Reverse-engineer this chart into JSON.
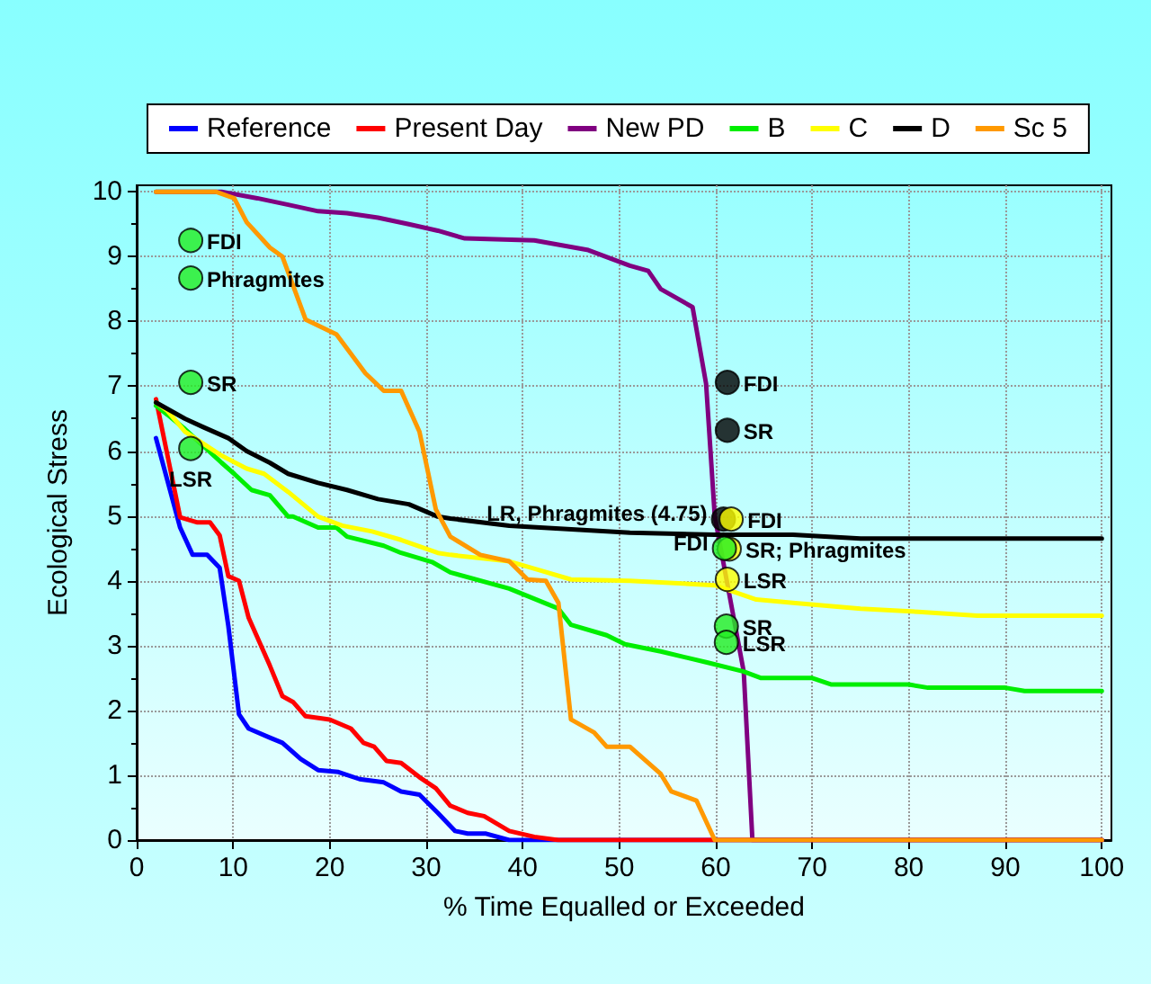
{
  "chart_data": {
    "type": "line",
    "xlabel": "% Time Equalled or Exceeded",
    "ylabel": "Ecological Stress",
    "xlim": [
      0,
      101
    ],
    "xticks": [
      0,
      10,
      20,
      30,
      40,
      50,
      60,
      70,
      80,
      90,
      100
    ],
    "ylim": [
      0,
      10.1
    ],
    "yticks": [
      0,
      1,
      2,
      3,
      4,
      5,
      6,
      7,
      8,
      9,
      10
    ],
    "grid": true,
    "legend": "top",
    "marker": "none",
    "line_style": "solid",
    "series": [
      {
        "name": "Reference",
        "color": "#0000ff",
        "x": [
          2,
          4.5,
          5.8,
          7.3,
          8.6,
          9.5,
          10.6,
          11.6,
          13.8,
          15.1,
          17,
          18.8,
          20.9,
          23.1,
          25.6,
          27.4,
          29.3,
          31.2,
          33,
          34.3,
          36.2,
          38.6,
          100
        ],
        "values": [
          6.2,
          4.82,
          4.4,
          4.4,
          4.2,
          3.3,
          1.94,
          1.72,
          1.58,
          1.5,
          1.25,
          1.08,
          1.05,
          0.94,
          0.89,
          0.75,
          0.7,
          0.42,
          0.14,
          0.1,
          0.1,
          0,
          0
        ]
      },
      {
        "name": "Present Day",
        "color": "#ff0000",
        "x": [
          2,
          4.5,
          6.3,
          7.6,
          8.6,
          9.5,
          10.6,
          11.6,
          13.8,
          15.1,
          16.2,
          17.5,
          20,
          22.2,
          23.5,
          24.6,
          25.9,
          27.4,
          29.3,
          31,
          32.5,
          34.3,
          36,
          38.6,
          41.2,
          43.7,
          100
        ],
        "values": [
          6.8,
          4.98,
          4.9,
          4.9,
          4.7,
          4.07,
          4,
          3.43,
          2.69,
          2.22,
          2.13,
          1.91,
          1.86,
          1.72,
          1.5,
          1.44,
          1.22,
          1.19,
          0.97,
          0.8,
          0.53,
          0.42,
          0.37,
          0.14,
          0.05,
          0,
          0
        ]
      },
      {
        "name": "New PD",
        "color": "#800080",
        "x": [
          2,
          8.8,
          12.5,
          15.7,
          18.8,
          21.8,
          25,
          28.2,
          31.2,
          34,
          41.2,
          46.8,
          51.1,
          53,
          54.3,
          57.6,
          59,
          59.9,
          62.9,
          63.8,
          100
        ],
        "values": [
          10,
          10,
          9.9,
          9.8,
          9.7,
          9.67,
          9.6,
          9.5,
          9.4,
          9.28,
          9.25,
          9.1,
          8.86,
          8.78,
          8.5,
          8.22,
          7.04,
          4.99,
          2.6,
          0,
          0
        ]
      },
      {
        "name": "B",
        "color": "#00ee00",
        "x": [
          2,
          3.2,
          5,
          8.8,
          10.1,
          11.9,
          13.8,
          15.7,
          16.2,
          18.8,
          20.7,
          21.8,
          25.6,
          27.4,
          30.6,
          32.5,
          38.6,
          43.7,
          45,
          48.7,
          50.6,
          54.3,
          59.1,
          62.9,
          64.7,
          70,
          72,
          80,
          82,
          90,
          92,
          100
        ],
        "values": [
          6.7,
          6.56,
          6.34,
          5.82,
          5.65,
          5.4,
          5.32,
          4.99,
          4.99,
          4.82,
          4.82,
          4.68,
          4.54,
          4.43,
          4.29,
          4.13,
          3.88,
          3.57,
          3.32,
          3.16,
          3.02,
          2.91,
          2.74,
          2.6,
          2.5,
          2.5,
          2.4,
          2.4,
          2.35,
          2.35,
          2.3,
          2.3
        ]
      },
      {
        "name": "C",
        "color": "#ffff00",
        "x": [
          2,
          3.2,
          5,
          8.8,
          11.4,
          13.2,
          15.7,
          18.8,
          21.3,
          24.4,
          27.4,
          31.2,
          32.5,
          38.6,
          41.8,
          45,
          51.1,
          59.9,
          64.2,
          68,
          75,
          81,
          87.1,
          100
        ],
        "values": [
          6.75,
          6.62,
          6.3,
          5.93,
          5.73,
          5.65,
          5.37,
          4.99,
          4.85,
          4.76,
          4.63,
          4.43,
          4.4,
          4.3,
          4.16,
          4.02,
          4,
          3.93,
          3.71,
          3.66,
          3.57,
          3.52,
          3.46,
          3.46
        ]
      },
      {
        "name": "D",
        "color": "#000000",
        "x": [
          2,
          5,
          6.9,
          9.5,
          11.4,
          13.8,
          15.7,
          18.8,
          21.8,
          25,
          28.2,
          31.2,
          32.5,
          38.6,
          51.1,
          59.9,
          68,
          75,
          100
        ],
        "values": [
          6.75,
          6.5,
          6.37,
          6.2,
          6,
          5.82,
          5.65,
          5.51,
          5.4,
          5.26,
          5.18,
          4.99,
          4.96,
          4.85,
          4.74,
          4.71,
          4.71,
          4.65,
          4.65
        ]
      },
      {
        "name": "Sc 5",
        "color": "#ff9900",
        "x": [
          2,
          8.2,
          10.1,
          11.4,
          13.8,
          15.1,
          17.5,
          20.7,
          23.7,
          25.6,
          27.4,
          29.3,
          31,
          32.5,
          35.6,
          38.6,
          40.5,
          42.4,
          43.7,
          45,
          47.4,
          48.7,
          51.1,
          54.3,
          55.4,
          58,
          59.9,
          100
        ],
        "values": [
          10,
          10,
          9.9,
          9.53,
          9.14,
          9,
          8.03,
          7.8,
          7.2,
          6.93,
          6.93,
          6.3,
          5.1,
          4.68,
          4.4,
          4.3,
          4.02,
          4,
          3.66,
          1.86,
          1.66,
          1.44,
          1.44,
          1.02,
          0.75,
          0.61,
          0,
          0
        ]
      },
      {
        "type": "scatter",
        "marker": "circle",
        "color": "#22ee22",
        "x": [
          5.6,
          5.6,
          5.6,
          5.6
        ],
        "values": [
          9.25,
          8.67,
          7.06,
          6.04
        ]
      },
      {
        "type": "scatter",
        "marker": "circle",
        "color": "#000000",
        "x": [
          61.2,
          61.2,
          60.8
        ],
        "values": [
          7.06,
          6.32,
          4.95
        ]
      },
      {
        "type": "scatter",
        "marker": "circle",
        "color": "#ffff00",
        "x": [
          61.6,
          61.4,
          61.2
        ],
        "values": [
          4.95,
          4.49,
          4.02
        ]
      },
      {
        "type": "scatter",
        "marker": "circle",
        "color": "#22ee22",
        "x": [
          60.9,
          61.1,
          61.1
        ],
        "values": [
          4.5,
          3.3,
          3.05
        ]
      }
    ],
    "annotations": [
      {
        "text": "FDI",
        "x": 5.6,
        "y": 9.25
      },
      {
        "text": "Phragmites",
        "x": 5.6,
        "y": 8.67
      },
      {
        "text": "SR",
        "x": 5.6,
        "y": 7.06
      },
      {
        "text": "LSR",
        "x": 5.6,
        "y": 6.04
      },
      {
        "text": "FDI",
        "x": 61.2,
        "y": 7.06
      },
      {
        "text": "SR",
        "x": 61.2,
        "y": 6.32
      },
      {
        "text": "FDI",
        "x": 61.6,
        "y": 4.95
      },
      {
        "text": "LR, Phragmites (4.75)",
        "x": 60.8,
        "y": 4.95
      },
      {
        "text": "SR; Phragmites",
        "x": 61.4,
        "y": 4.49
      },
      {
        "text": "FDI",
        "x": 60.9,
        "y": 4.5
      },
      {
        "text": "LSR",
        "x": 61.2,
        "y": 4.02
      },
      {
        "text": "SR",
        "x": 61.1,
        "y": 3.3
      },
      {
        "text": "LSR",
        "x": 61.1,
        "y": 3.05
      }
    ]
  }
}
